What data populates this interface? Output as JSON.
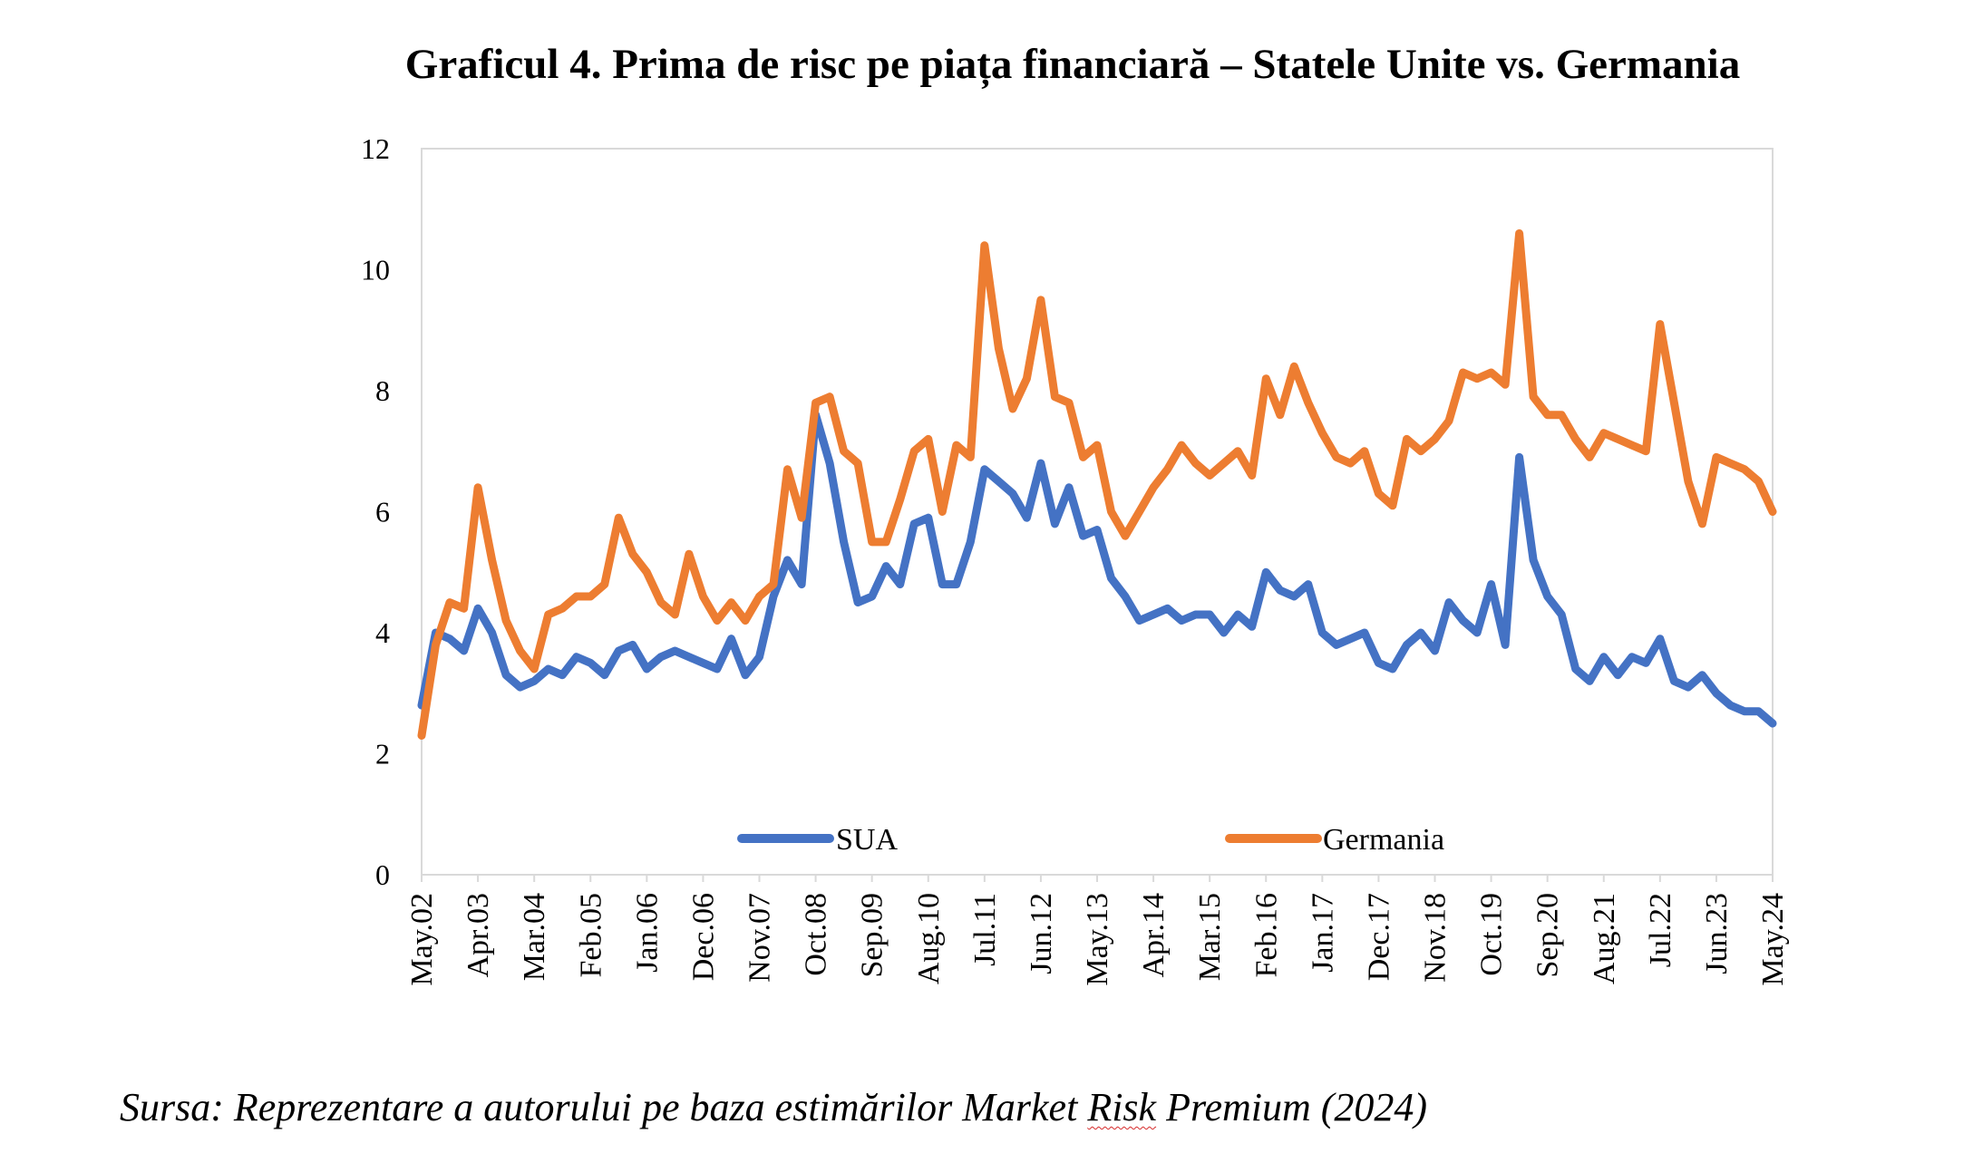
{
  "figure": {
    "title": "Graficul 4. Prima de risc pe piața financiară – Statele Unite vs. Germania",
    "source_prefix": "Sursa: Reprezentare a autorului pe baza estimărilor Market ",
    "source_marked_word": "Risk",
    "source_suffix": " Premium (2024)"
  },
  "chart_data": {
    "type": "line",
    "title": "",
    "xlabel": "",
    "ylabel": "",
    "ylim": [
      0,
      12
    ],
    "y_ticks": [
      0,
      2,
      4,
      6,
      8,
      10,
      12
    ],
    "grid": false,
    "legend_position": "bottom-center",
    "x_tick_labels": [
      "May.02",
      "Apr.03",
      "Mar.04",
      "Feb.05",
      "Jan.06",
      "Dec.06",
      "Nov.07",
      "Oct.08",
      "Sep.09",
      "Aug.10",
      "Jul.11",
      "Jun.12",
      "May.13",
      "Apr.14",
      "Mar.15",
      "Feb.16",
      "Jan.17",
      "Dec.17",
      "Nov.18",
      "Oct.19",
      "Sep.20",
      "Aug.21",
      "Jul.22",
      "Jun.23",
      "May.24"
    ],
    "x": [
      "May.02",
      "Aug.02",
      "Nov.02",
      "Feb.03",
      "Apr.03",
      "Jun.03",
      "Sep.03",
      "Dec.03",
      "Mar.04",
      "Jun.04",
      "Sep.04",
      "Dec.04",
      "Feb.05",
      "May.05",
      "Aug.05",
      "Nov.05",
      "Jan.06",
      "Apr.06",
      "Jul.06",
      "Oct.06",
      "Dec.06",
      "Mar.07",
      "Jun.07",
      "Sep.07",
      "Nov.07",
      "Feb.08",
      "May.08",
      "Aug.08",
      "Oct.08",
      "Jan.09",
      "Apr.09",
      "Jul.09",
      "Sep.09",
      "Dec.09",
      "Mar.10",
      "Jun.10",
      "Aug.10",
      "Nov.10",
      "Feb.11",
      "May.11",
      "Jul.11",
      "Sep.11",
      "Nov.11",
      "Feb.12",
      "Jun.12",
      "Sep.12",
      "Dec.12",
      "Mar.13",
      "May.13",
      "Aug.13",
      "Nov.13",
      "Feb.14",
      "Apr.14",
      "Jul.14",
      "Oct.14",
      "Jan.15",
      "Mar.15",
      "Jun.15",
      "Sep.15",
      "Dec.15",
      "Feb.16",
      "May.16",
      "Aug.16",
      "Nov.16",
      "Jan.17",
      "Apr.17",
      "Jul.17",
      "Oct.17",
      "Dec.17",
      "Mar.18",
      "Jun.18",
      "Sep.18",
      "Nov.18",
      "Feb.19",
      "May.19",
      "Aug.19",
      "Oct.19",
      "Jan.20",
      "Mar.20",
      "Jun.20",
      "Sep.20",
      "Dec.20",
      "Mar.21",
      "Jun.21",
      "Aug.21",
      "Nov.21",
      "Feb.22",
      "May.22",
      "Jul.22",
      "Oct.22",
      "Jan.23",
      "Apr.23",
      "Jun.23",
      "Sep.23",
      "Dec.23",
      "Mar.24",
      "May.24"
    ],
    "series": [
      {
        "name": "SUA",
        "color": "#4472c4",
        "values": [
          2.8,
          4.0,
          3.9,
          3.7,
          4.4,
          4.0,
          3.3,
          3.1,
          3.2,
          3.4,
          3.3,
          3.6,
          3.5,
          3.3,
          3.7,
          3.8,
          3.4,
          3.6,
          3.7,
          3.6,
          3.5,
          3.4,
          3.9,
          3.3,
          3.6,
          4.6,
          5.2,
          4.8,
          7.6,
          6.8,
          5.5,
          4.5,
          4.6,
          5.1,
          4.8,
          5.8,
          5.9,
          4.8,
          4.8,
          5.5,
          6.7,
          6.5,
          6.3,
          5.9,
          6.8,
          5.8,
          6.4,
          5.6,
          5.7,
          4.9,
          4.6,
          4.2,
          4.3,
          4.4,
          4.2,
          4.3,
          4.3,
          4.0,
          4.3,
          4.1,
          5.0,
          4.7,
          4.6,
          4.8,
          4.0,
          3.8,
          3.9,
          4.0,
          3.5,
          3.4,
          3.8,
          4.0,
          3.7,
          4.5,
          4.2,
          4.0,
          4.8,
          3.8,
          6.9,
          5.2,
          4.6,
          4.3,
          3.4,
          3.2,
          3.6,
          3.3,
          3.6,
          3.5,
          3.9,
          3.2,
          3.1,
          3.3,
          3.0,
          2.8,
          2.7,
          2.7,
          2.5
        ]
      },
      {
        "name": "Germania",
        "color": "#ed7d31",
        "values": [
          2.3,
          3.8,
          4.5,
          4.4,
          6.4,
          5.2,
          4.2,
          3.7,
          3.4,
          4.3,
          4.4,
          4.6,
          4.6,
          4.8,
          5.9,
          5.3,
          5.0,
          4.5,
          4.3,
          5.3,
          4.6,
          4.2,
          4.5,
          4.2,
          4.6,
          4.8,
          6.7,
          5.9,
          7.8,
          7.9,
          7.0,
          6.8,
          5.5,
          5.5,
          6.2,
          7.0,
          7.2,
          6.0,
          7.1,
          6.9,
          10.4,
          8.7,
          7.7,
          8.2,
          9.5,
          7.9,
          7.8,
          6.9,
          7.1,
          6.0,
          5.6,
          6.0,
          6.4,
          6.7,
          7.1,
          6.8,
          6.6,
          6.8,
          7.0,
          6.6,
          8.2,
          7.6,
          8.4,
          7.8,
          7.3,
          6.9,
          6.8,
          7.0,
          6.3,
          6.1,
          7.2,
          7.0,
          7.2,
          7.5,
          8.3,
          8.2,
          8.3,
          8.1,
          10.6,
          7.9,
          7.6,
          7.6,
          7.2,
          6.9,
          7.3,
          7.2,
          7.1,
          7.0,
          9.1,
          7.8,
          6.5,
          5.8,
          6.9,
          6.8,
          6.7,
          6.5,
          6.0
        ]
      }
    ]
  }
}
